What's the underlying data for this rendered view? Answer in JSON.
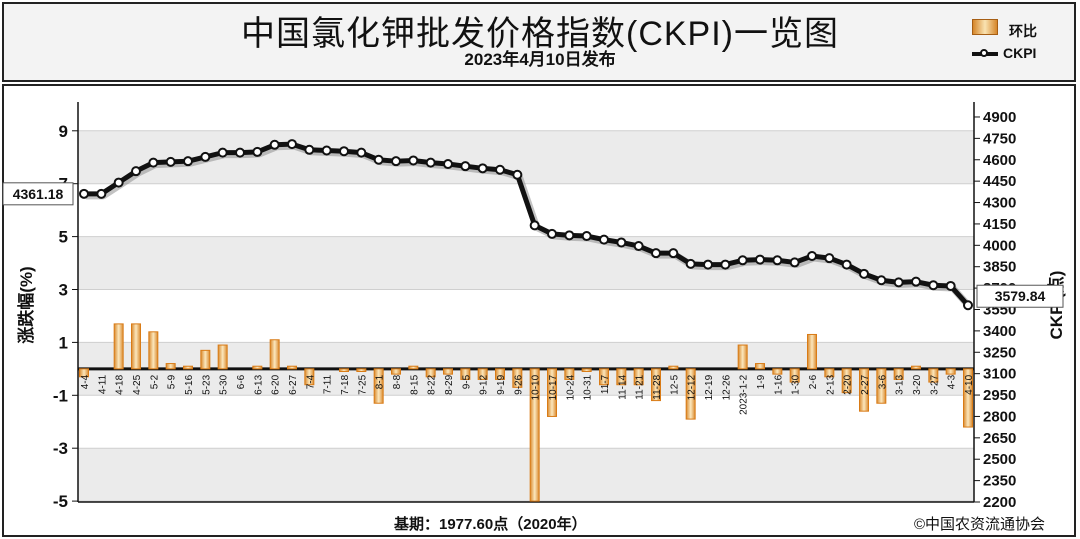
{
  "header": {
    "title": "中国氯化钾批发价格指数(CKPI)一览图",
    "subtitle": "2023年4月10日发布"
  },
  "legend": {
    "bar_label": "环比",
    "line_label": "CKPI"
  },
  "footer": {
    "base_note": "基期：1977.60点（2020年）",
    "source": "©中国农资流通协会"
  },
  "colors": {
    "bar_fill": "#f3c275",
    "bar_edge": "#d97b16",
    "line": "#111111",
    "grid_band": "#ebebeb"
  },
  "chart_data": {
    "type": "bar+line",
    "title": "中国氯化钾批发价格指数(CKPI)一览图",
    "ylabel_left": "涨跌幅(%)",
    "ylabel_right": "CKPI(点)",
    "ylim_left": [
      -5,
      10
    ],
    "yticks_left": [
      -5,
      -3,
      -1,
      1,
      3,
      5,
      7,
      9
    ],
    "ylim_right": [
      2200,
      5000
    ],
    "yticks_right": [
      2200,
      2350,
      2500,
      2650,
      2800,
      2950,
      3100,
      3250,
      3400,
      3550,
      3700,
      3850,
      4000,
      4150,
      4300,
      4450,
      4600,
      4750,
      4900
    ],
    "grid": true,
    "legend_position": "top-right",
    "categories": [
      "4-4",
      "4-11",
      "4-18",
      "4-25",
      "5-2",
      "5-9",
      "5-16",
      "5-23",
      "5-30",
      "6-6",
      "6-13",
      "6-20",
      "6-27",
      "7-4",
      "7-11",
      "7-18",
      "7-25",
      "8-1",
      "8-8",
      "8-15",
      "8-22",
      "8-29",
      "9-5",
      "9-12",
      "9-19",
      "9-26",
      "10-10",
      "10-17",
      "10-24",
      "10-31",
      "11-7",
      "11-14",
      "11-21",
      "11-28",
      "12-5",
      "12-12",
      "12-19",
      "12-26",
      "2023-1-2",
      "1-9",
      "1-16",
      "1-30",
      "2-6",
      "2-13",
      "2-20",
      "2-27",
      "3-6",
      "3-13",
      "3-20",
      "3-27",
      "4-3",
      "4-10"
    ],
    "series": [
      {
        "name": "环比",
        "kind": "bar",
        "values": [
          -0.3,
          0.0,
          1.7,
          1.7,
          1.4,
          0.2,
          0.1,
          0.7,
          0.9,
          0.0,
          0.1,
          1.1,
          0.1,
          -0.6,
          0.0,
          -0.1,
          -0.1,
          -1.3,
          -0.2,
          0.1,
          -0.3,
          -0.2,
          -0.4,
          -0.4,
          -0.4,
          -0.7,
          -5.0,
          -1.8,
          -0.4,
          -0.1,
          -0.6,
          -0.6,
          -0.6,
          -1.2,
          0.1,
          -1.9,
          0.0,
          0.0,
          0.9,
          0.2,
          -0.2,
          -0.5,
          1.3,
          -0.3,
          -0.9,
          -1.6,
          -1.3,
          -0.4,
          0.1,
          -0.5,
          -0.2,
          -2.2
        ]
      },
      {
        "name": "CKPI",
        "kind": "line",
        "values": [
          4361.18,
          4361,
          4440,
          4520,
          4580,
          4585,
          4590,
          4620,
          4650,
          4650,
          4655,
          4705,
          4710,
          4670,
          4665,
          4660,
          4650,
          4600,
          4590,
          4595,
          4580,
          4570,
          4555,
          4540,
          4530,
          4495,
          4140,
          4080,
          4070,
          4065,
          4040,
          4020,
          3995,
          3945,
          3945,
          3870,
          3865,
          3865,
          3895,
          3900,
          3895,
          3880,
          3925,
          3910,
          3865,
          3800,
          3755,
          3740,
          3745,
          3720,
          3715,
          3579.84
        ]
      }
    ],
    "annotations": [
      {
        "text": "4361.18",
        "at": "4-4"
      },
      {
        "text": "3579.84",
        "at": "4-10"
      }
    ]
  }
}
